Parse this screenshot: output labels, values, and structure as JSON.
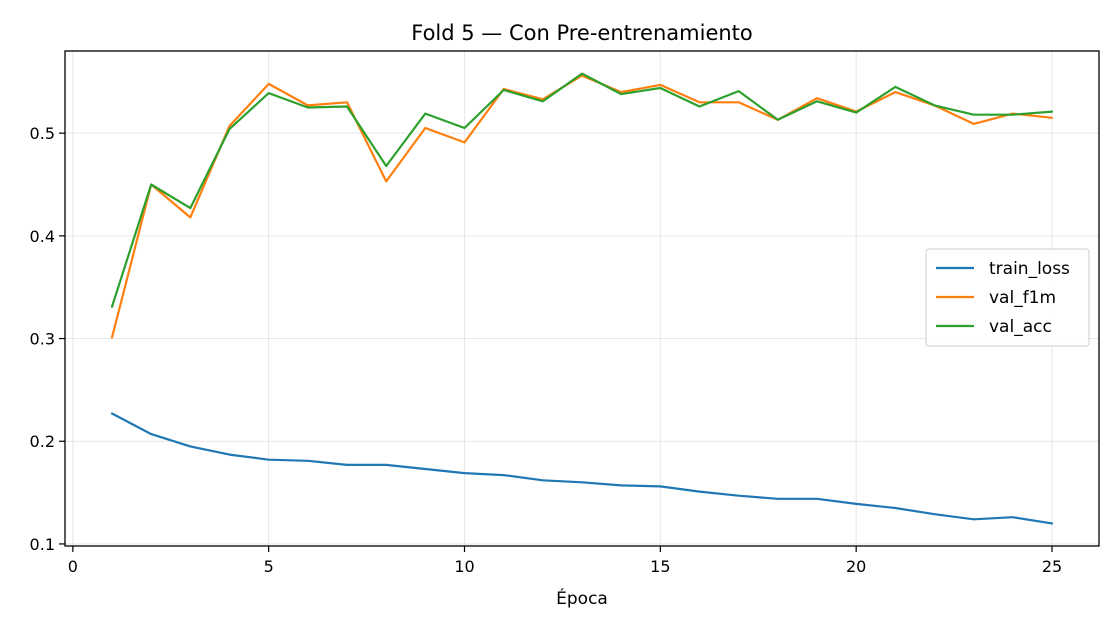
{
  "chart_data": {
    "type": "line",
    "title": "Fold 5 — Con Pre-entrenamiento",
    "xlabel": "Época",
    "ylabel": "",
    "xlim": [
      -0.2,
      26.2
    ],
    "ylim": [
      0.098,
      0.58
    ],
    "xticks": [
      0,
      5,
      10,
      15,
      20,
      25
    ],
    "yticks": [
      0.1,
      0.2,
      0.3,
      0.4,
      0.5
    ],
    "grid": true,
    "legend_position": "center-right",
    "x": [
      1,
      2,
      3,
      4,
      5,
      6,
      7,
      8,
      9,
      10,
      11,
      12,
      13,
      14,
      15,
      16,
      17,
      18,
      19,
      20,
      21,
      22,
      23,
      24,
      25
    ],
    "series": [
      {
        "name": "train_loss",
        "color": "#1f77b4",
        "values": [
          0.227,
          0.207,
          0.195,
          0.187,
          0.182,
          0.181,
          0.177,
          0.177,
          0.173,
          0.169,
          0.167,
          0.162,
          0.16,
          0.157,
          0.156,
          0.151,
          0.147,
          0.144,
          0.144,
          0.139,
          0.135,
          0.129,
          0.124,
          0.126,
          0.12
        ]
      },
      {
        "name": "val_f1m",
        "color": "#ff7f0e",
        "values": [
          0.301,
          0.45,
          0.418,
          0.507,
          0.548,
          0.527,
          0.53,
          0.453,
          0.505,
          0.491,
          0.543,
          0.533,
          0.556,
          0.54,
          0.547,
          0.53,
          0.53,
          0.513,
          0.534,
          0.521,
          0.54,
          0.527,
          0.509,
          0.519,
          0.515
        ]
      },
      {
        "name": "val_acc",
        "color": "#2ca02c",
        "values": [
          0.331,
          0.45,
          0.427,
          0.504,
          0.539,
          0.525,
          0.526,
          0.468,
          0.519,
          0.505,
          0.542,
          0.531,
          0.558,
          0.538,
          0.544,
          0.526,
          0.541,
          0.513,
          0.531,
          0.52,
          0.545,
          0.527,
          0.518,
          0.518,
          0.521
        ]
      }
    ]
  }
}
